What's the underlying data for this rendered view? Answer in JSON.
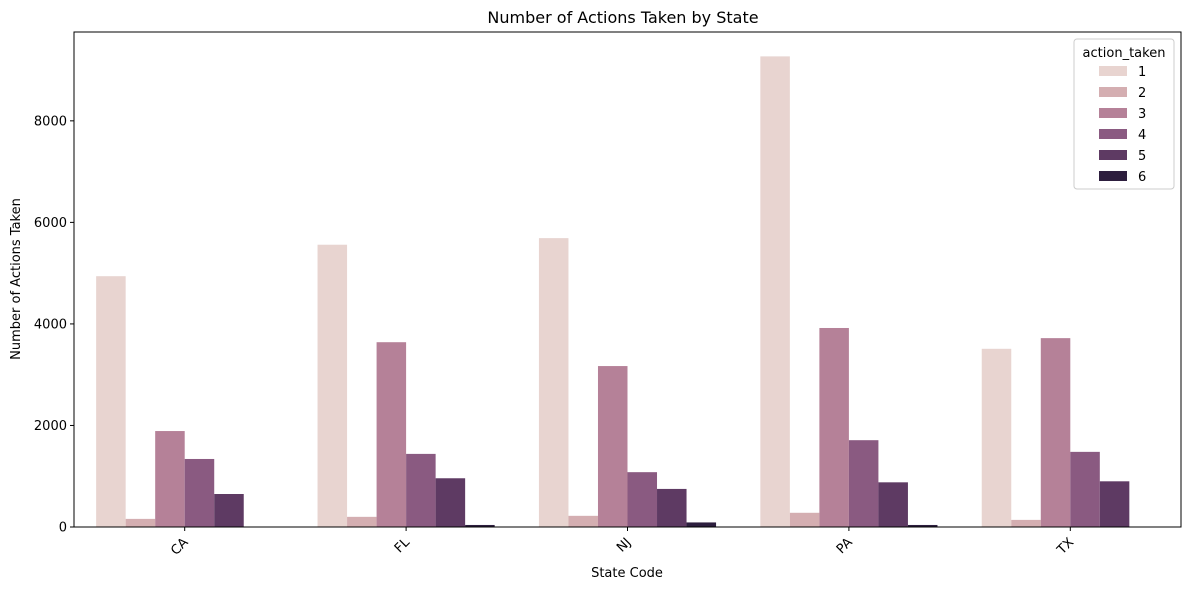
{
  "chart_data": {
    "type": "bar",
    "title": "Number of Actions Taken by State",
    "xlabel": "State Code",
    "ylabel": "Number of Actions Taken",
    "categories": [
      "CA",
      "FL",
      "NJ",
      "PA",
      "TX"
    ],
    "ylim": [
      0,
      9750
    ],
    "yticks": [
      0,
      2000,
      4000,
      6000,
      8000
    ],
    "legend": {
      "title": "action_taken",
      "placement": "top-right"
    },
    "series": [
      {
        "name": "1",
        "color": "#e8d4d0",
        "values": [
          4940,
          5560,
          5690,
          9270,
          3510
        ]
      },
      {
        "name": "2",
        "color": "#d4aeb1",
        "values": [
          160,
          200,
          220,
          280,
          140
        ]
      },
      {
        "name": "3",
        "color": "#b58198",
        "values": [
          1890,
          3640,
          3170,
          3920,
          3720
        ]
      },
      {
        "name": "4",
        "color": "#8a5a81",
        "values": [
          1340,
          1440,
          1080,
          1710,
          1480
        ]
      },
      {
        "name": "5",
        "color": "#5e3a63",
        "values": [
          650,
          960,
          750,
          880,
          900
        ]
      },
      {
        "name": "6",
        "color": "#2d1e3e",
        "values": [
          0,
          40,
          90,
          40,
          0
        ]
      }
    ]
  }
}
